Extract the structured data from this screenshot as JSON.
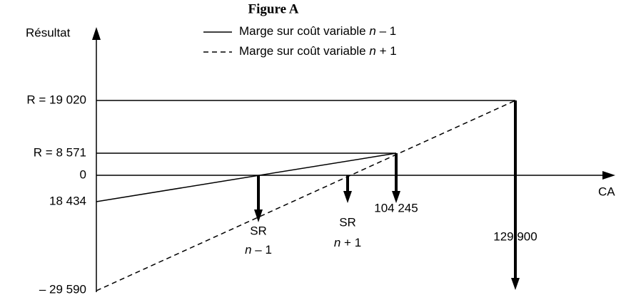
{
  "title": "Figure A",
  "legend": [
    {
      "label": "Marge sur coût variable",
      "var": "n",
      "op": "– 1"
    },
    {
      "label": "Marge sur coût variable",
      "var": "n",
      "op": "+ 1"
    }
  ],
  "y_axis": {
    "label": "Résultat",
    "ticks": [
      "R = 19 020",
      "R = 8 571",
      "0",
      "18 434",
      "– 29 590"
    ]
  },
  "x_axis": {
    "label": "CA"
  },
  "markers": [
    {
      "label": "SR",
      "var": "n",
      "op": "– 1"
    },
    {
      "label": "SR",
      "var": "n",
      "op": "+ 1"
    },
    {
      "label": "104 245"
    },
    {
      "label": "129 900"
    }
  ]
}
